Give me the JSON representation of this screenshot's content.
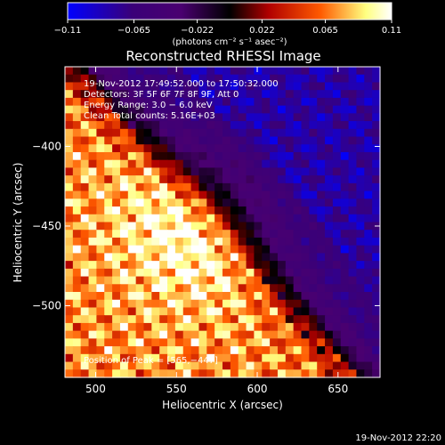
{
  "colorbar": {
    "tick_labels": [
      "−0.11",
      "−0.065",
      "−0.022",
      "0.022",
      "0.065",
      "0.11"
    ],
    "units": "(photons cm⁻² s⁻¹ asec⁻²)",
    "range": [
      -0.11,
      0.11
    ]
  },
  "annotations": {
    "time_range": "19-Nov-2012 17:49:52.000 to 17:50:32.000",
    "detectors": "Detectors: 3F 5F 6F 7F 8F 9F, Att 0",
    "energy_range": "Energy Range: 3.0 − 6.0 keV",
    "clean": "Clean    Total counts: 5.16E+03",
    "peak": "Position of Peak = [565,−447]"
  },
  "footer_timestamp": "19-Nov-2012 22:20",
  "chart_data": {
    "type": "heatmap",
    "title": "Reconstructed RHESSI Image",
    "xlabel": "Heliocentric X (arcsec)",
    "ylabel": "Heliocentric Y (arcsec)",
    "xlim": [
      481,
      676
    ],
    "ylim": [
      -545,
      -350
    ],
    "x_ticks": [
      500,
      550,
      600,
      650
    ],
    "y_ticks": [
      -400,
      -450,
      -500
    ],
    "x_tick_labels": [
      "500",
      "550",
      "600",
      "650"
    ],
    "y_tick_labels": [
      "−400",
      "−450",
      "−500"
    ],
    "colormap": [
      "#0000ff",
      "#3a0078",
      "#4a0070",
      "#000000",
      "#b00000",
      "#ff5a00",
      "#ffff80",
      "#ffffff"
    ],
    "peak": [
      565,
      -447
    ],
    "flux_range": [
      -0.11,
      0.11
    ]
  }
}
